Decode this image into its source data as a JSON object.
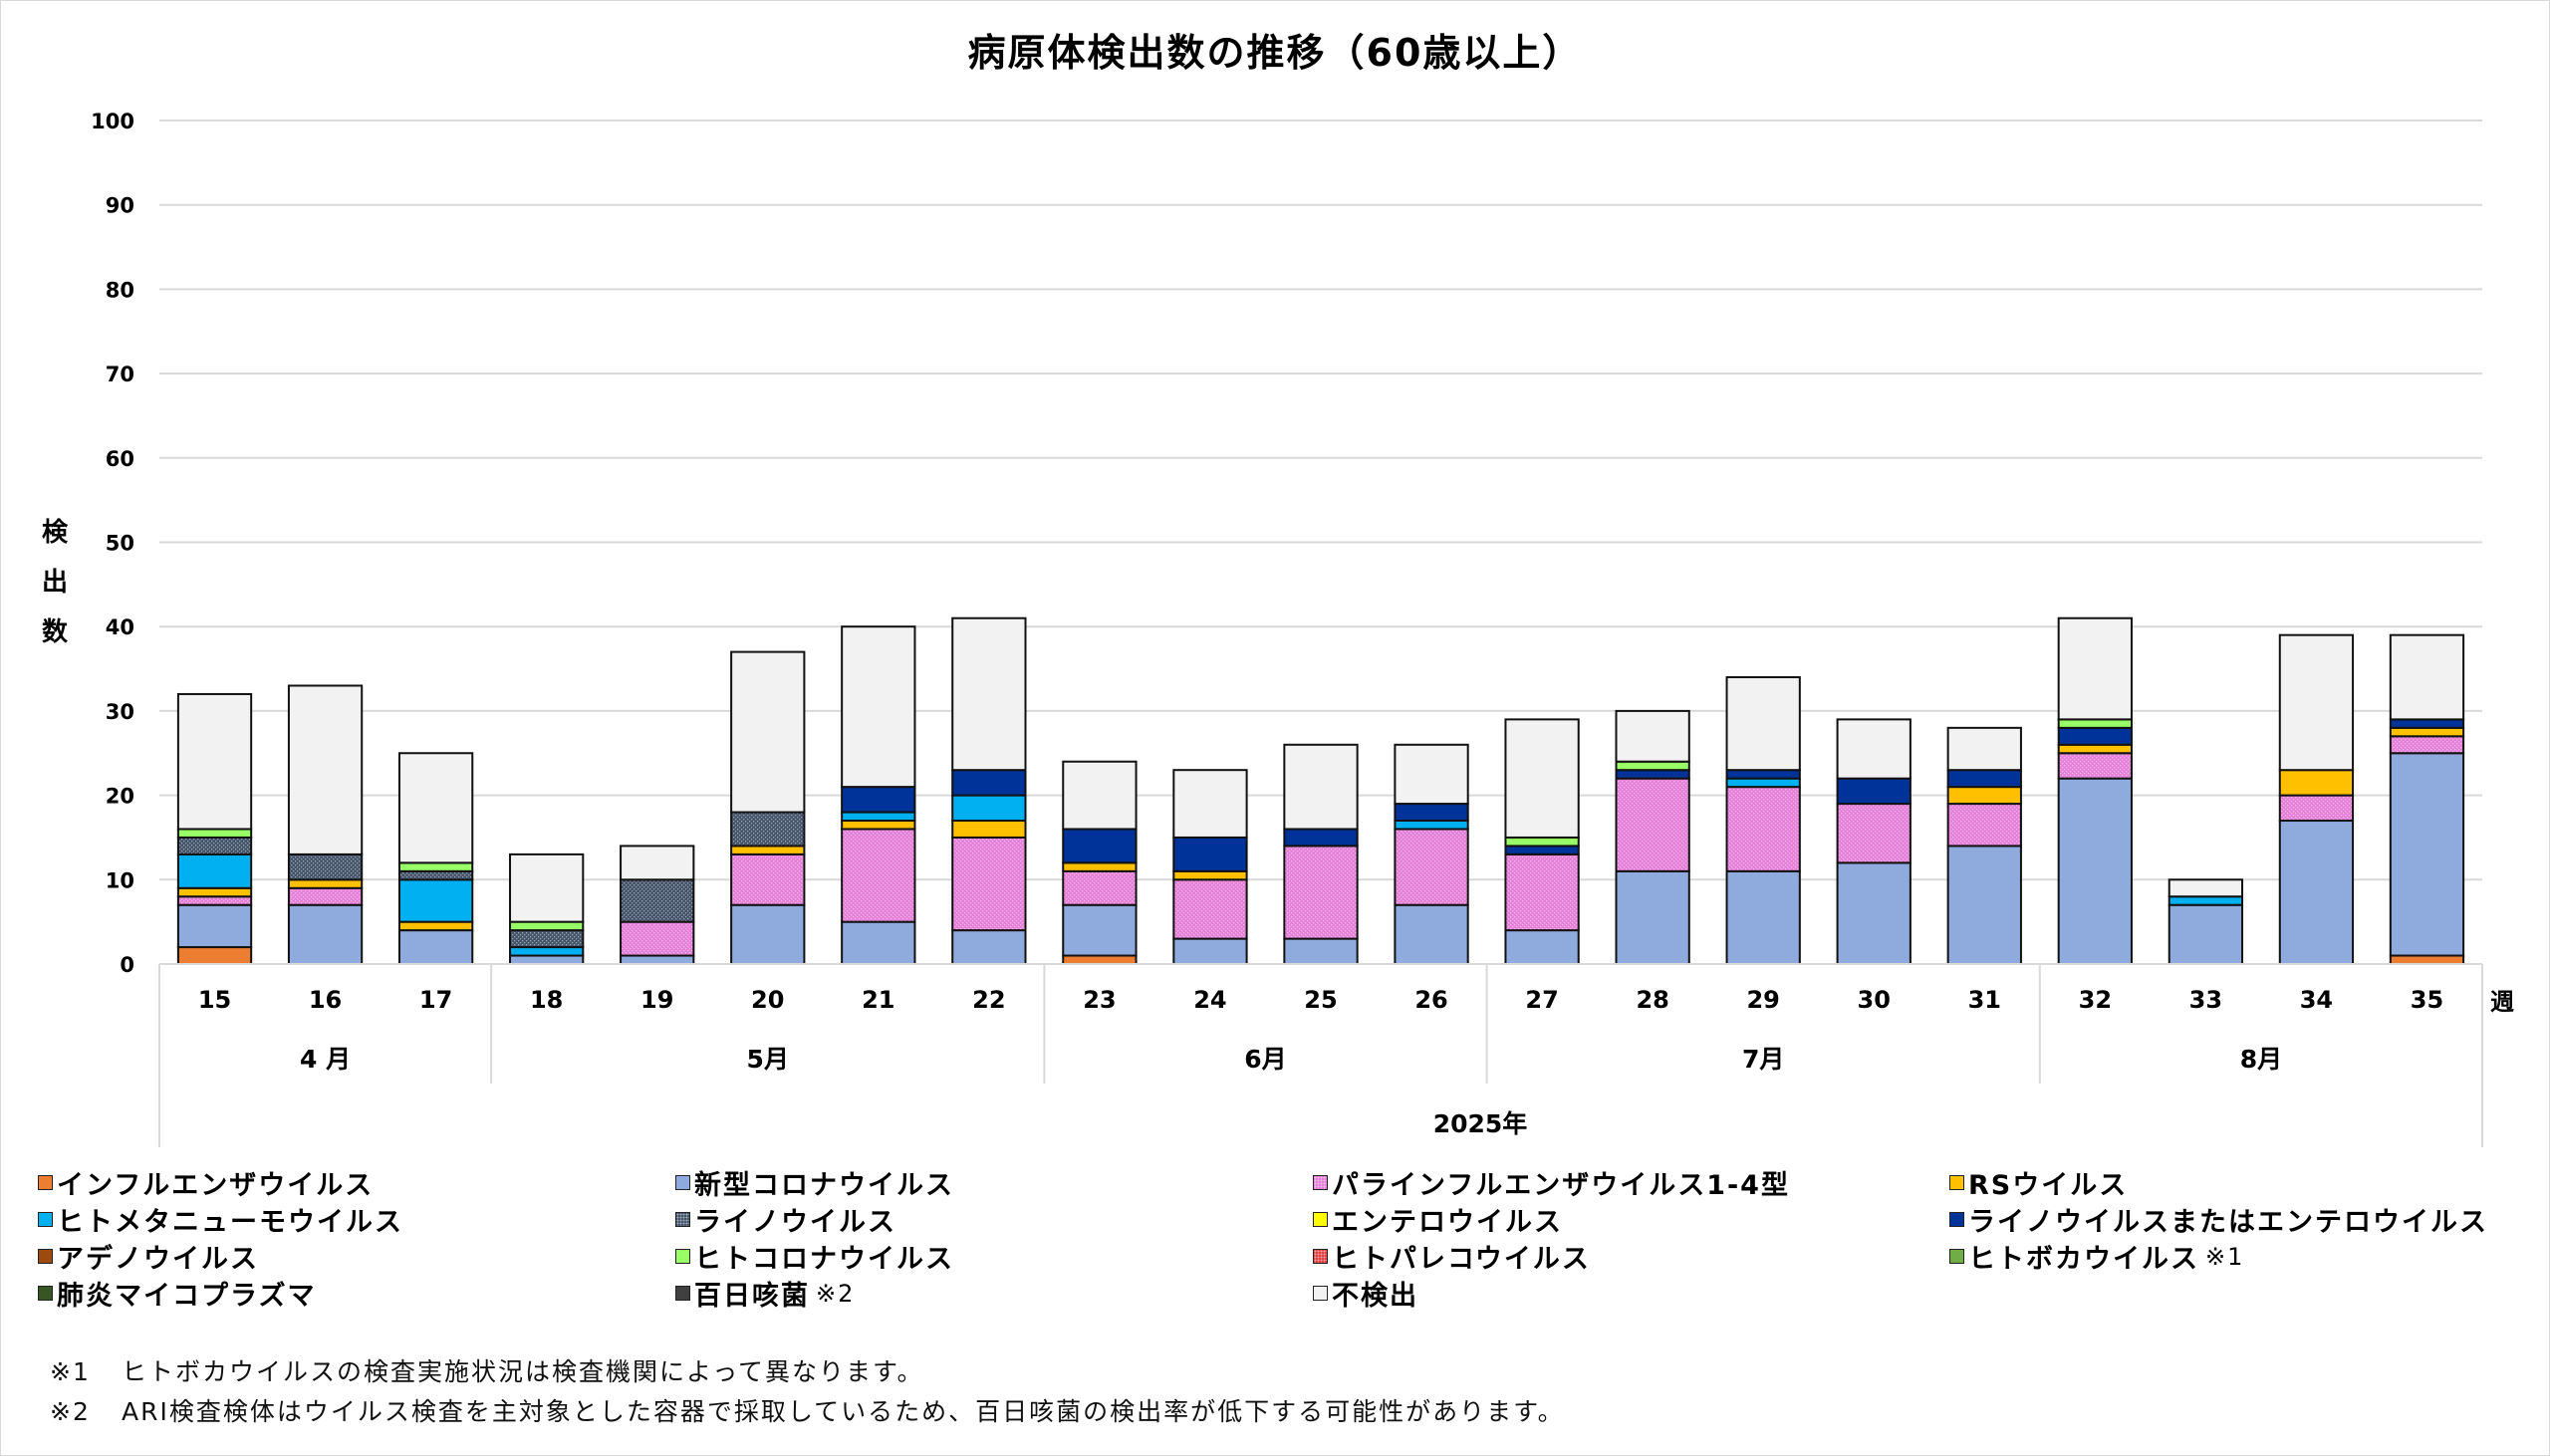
{
  "title": "病原体検出数の推移（60歳以上）",
  "y_axis_label": "検出数",
  "x_unit_label": "週",
  "year_label": "2025年",
  "chart_data": {
    "type": "bar",
    "stacked": true,
    "title": "病原体検出数の推移（60歳以上）",
    "xlabel": "2025年",
    "ylabel": "検出数",
    "ylim": [
      0,
      100
    ],
    "yticks": [
      0,
      10,
      20,
      30,
      40,
      50,
      60,
      70,
      80,
      90,
      100
    ],
    "grid": true,
    "legend_position": "bottom",
    "categories": [
      "15",
      "16",
      "17",
      "18",
      "19",
      "20",
      "21",
      "22",
      "23",
      "24",
      "25",
      "26",
      "27",
      "28",
      "29",
      "30",
      "31",
      "32",
      "33",
      "34",
      "35"
    ],
    "months": [
      {
        "label": "4 月",
        "weeks": [
          "15",
          "16",
          "17"
        ]
      },
      {
        "label": "5月",
        "weeks": [
          "18",
          "19",
          "20",
          "21",
          "22"
        ]
      },
      {
        "label": "6月",
        "weeks": [
          "23",
          "24",
          "25",
          "26"
        ]
      },
      {
        "label": "7月",
        "weeks": [
          "27",
          "28",
          "29",
          "30",
          "31"
        ]
      },
      {
        "label": "8月",
        "weeks": [
          "32",
          "33",
          "34",
          "35"
        ]
      }
    ],
    "series": [
      {
        "name": "インフルエンザウイルス",
        "color": "#ED7D31",
        "pattern": "solid",
        "values": [
          2,
          0,
          0,
          0,
          0,
          0,
          0,
          0,
          1,
          0,
          0,
          0,
          0,
          0,
          0,
          0,
          0,
          0,
          0,
          0,
          1
        ]
      },
      {
        "name": "新型コロナウイルス",
        "color": "#8FAADC",
        "pattern": "solid",
        "values": [
          5,
          7,
          4,
          1,
          1,
          7,
          5,
          4,
          6,
          3,
          3,
          7,
          4,
          11,
          11,
          12,
          14,
          22,
          7,
          17,
          24
        ]
      },
      {
        "name": "パラインフルエンザウイルス1-4型",
        "color": "#E67FD8",
        "pattern": "dots",
        "values": [
          1,
          2,
          0,
          0,
          4,
          6,
          11,
          11,
          4,
          7,
          11,
          9,
          9,
          11,
          10,
          7,
          5,
          3,
          0,
          3,
          2
        ]
      },
      {
        "name": "RSウイルス",
        "color": "#FFC000",
        "pattern": "solid",
        "values": [
          1,
          1,
          1,
          0,
          0,
          1,
          1,
          2,
          1,
          1,
          0,
          0,
          0,
          0,
          0,
          0,
          2,
          1,
          0,
          3,
          1
        ]
      },
      {
        "name": "ヒトメタニューモウイルス",
        "color": "#00B0F0",
        "pattern": "solid",
        "values": [
          4,
          0,
          5,
          1,
          0,
          0,
          1,
          3,
          0,
          0,
          0,
          1,
          0,
          0,
          1,
          0,
          0,
          0,
          1,
          0,
          0
        ]
      },
      {
        "name": "ライノウイルス",
        "color": "#44546A",
        "pattern": "dots",
        "values": [
          2,
          3,
          1,
          2,
          5,
          4,
          0,
          0,
          0,
          0,
          0,
          0,
          0,
          0,
          0,
          0,
          0,
          0,
          0,
          0,
          0
        ]
      },
      {
        "name": "エンテロウイルス",
        "color": "#FFFF00",
        "pattern": "solid",
        "values": [
          0,
          0,
          0,
          0,
          0,
          0,
          0,
          0,
          0,
          0,
          0,
          0,
          0,
          0,
          0,
          0,
          0,
          0,
          0,
          0,
          0
        ]
      },
      {
        "name": "ライノウイルスまたはエンテロウイルス",
        "color": "#003399",
        "pattern": "solid",
        "values": [
          0,
          0,
          0,
          0,
          0,
          0,
          3,
          3,
          4,
          4,
          2,
          2,
          1,
          1,
          1,
          3,
          2,
          2,
          0,
          0,
          1
        ]
      },
      {
        "name": "アデノウイルス",
        "color": "#9C4A0F",
        "pattern": "solid",
        "values": [
          0,
          0,
          0,
          0,
          0,
          0,
          0,
          0,
          0,
          0,
          0,
          0,
          0,
          0,
          0,
          0,
          0,
          0,
          0,
          0,
          0
        ]
      },
      {
        "name": "ヒトコロナウイルス",
        "color": "#99FF66",
        "pattern": "solid",
        "values": [
          1,
          0,
          1,
          1,
          0,
          0,
          0,
          0,
          0,
          0,
          0,
          0,
          1,
          1,
          0,
          0,
          0,
          1,
          0,
          0,
          0
        ]
      },
      {
        "name": "ヒトパレコウイルス",
        "color": "#E04040",
        "pattern": "dots",
        "values": [
          0,
          0,
          0,
          0,
          0,
          0,
          0,
          0,
          0,
          0,
          0,
          0,
          0,
          0,
          0,
          0,
          0,
          0,
          0,
          0,
          0
        ]
      },
      {
        "name": "ヒトボカウイルス",
        "note": "※1",
        "color": "#70AD47",
        "pattern": "solid",
        "values": [
          0,
          0,
          0,
          0,
          0,
          0,
          0,
          0,
          0,
          0,
          0,
          0,
          0,
          0,
          0,
          0,
          0,
          0,
          0,
          0,
          0
        ]
      },
      {
        "name": "肺炎マイコプラズマ",
        "color": "#375623",
        "pattern": "solid",
        "values": [
          0,
          0,
          0,
          0,
          0,
          0,
          0,
          0,
          0,
          0,
          0,
          0,
          0,
          0,
          0,
          0,
          0,
          0,
          0,
          0,
          0
        ]
      },
      {
        "name": "百日咳菌",
        "note": "※2",
        "color": "#404040",
        "pattern": "solid",
        "values": [
          0,
          0,
          0,
          0,
          0,
          0,
          0,
          0,
          0,
          0,
          0,
          0,
          0,
          0,
          0,
          0,
          0,
          0,
          0,
          0,
          0
        ]
      },
      {
        "name": "不検出",
        "color": "#F2F2F2",
        "pattern": "solid",
        "values": [
          16,
          20,
          13,
          8,
          4,
          19,
          19,
          18,
          8,
          8,
          10,
          7,
          14,
          6,
          11,
          7,
          5,
          12,
          2,
          16,
          10
        ]
      }
    ],
    "totals": [
      32,
      33,
      25,
      13,
      14,
      37,
      40,
      41,
      24,
      23,
      26,
      26,
      29,
      30,
      34,
      29,
      28,
      41,
      10,
      39,
      39
    ]
  },
  "legend_order": [
    0,
    1,
    2,
    3,
    4,
    5,
    6,
    7,
    8,
    9,
    10,
    11,
    12,
    13,
    14
  ],
  "footnotes": [
    {
      "mark": "※1",
      "text": "ヒトボカウイルスの検査実施状況は検査機関によって異なります。"
    },
    {
      "mark": "※2",
      "text": "ARI検査検体はウイルス検査を主対象とした容器で採取しているため、百日咳菌の検出率が低下する可能性があります。"
    }
  ]
}
